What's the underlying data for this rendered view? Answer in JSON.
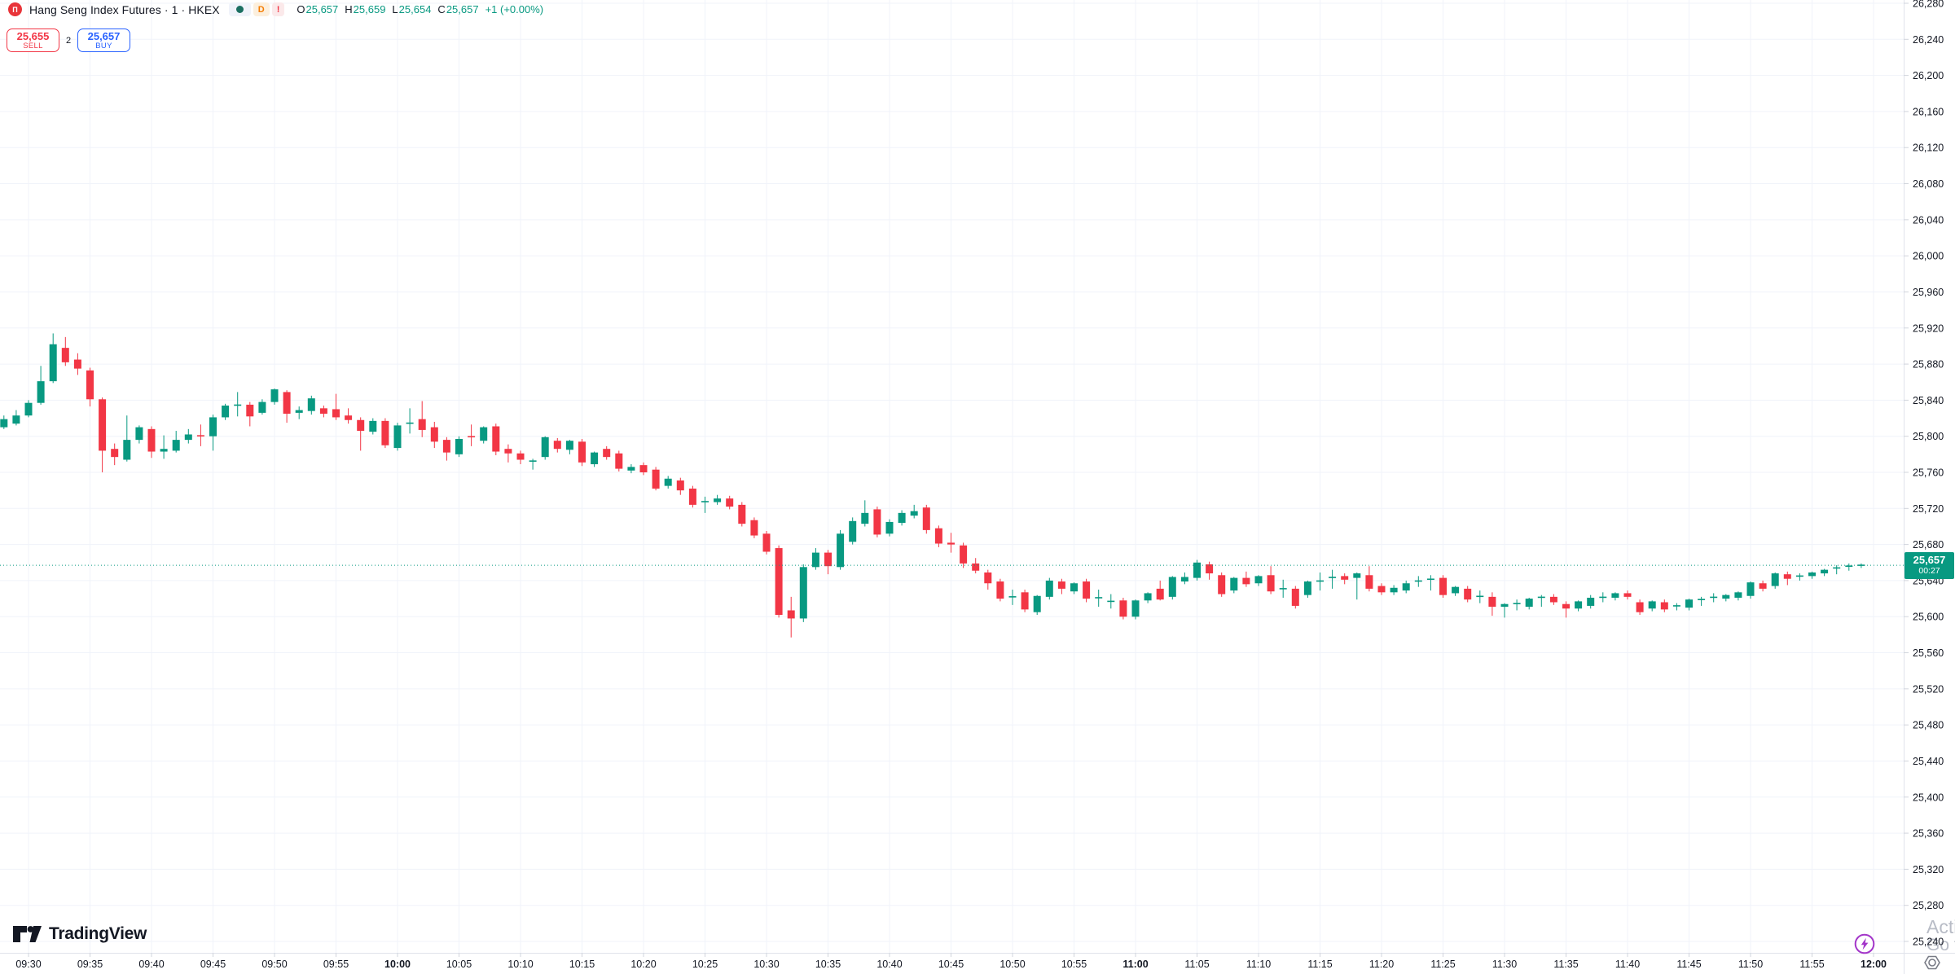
{
  "header": {
    "symbol_icon_glyph": "Π",
    "title": "Hang Seng Index Futures · 1 · HKEX",
    "interval_badge": "D",
    "alert_badge": "!",
    "ohlc": {
      "o_label": "O",
      "o": "25,657",
      "h_label": "H",
      "h": "25,659",
      "l_label": "L",
      "l": "25,654",
      "c_label": "C",
      "c": "25,657",
      "change": "+1 (+0.00%)"
    }
  },
  "trade_panel": {
    "sell_price": "25,655",
    "sell_label": "SELL",
    "spread": "2",
    "buy_price": "25,657",
    "buy_label": "BUY"
  },
  "price_scale": {
    "last_price": "25,657",
    "countdown": "00:27"
  },
  "watermark": {
    "logo_text": "TradingView",
    "activate_fragment": "Activ",
    "goto_fragment": "Go to S"
  },
  "colors": {
    "up": "#089981",
    "down": "#f23645",
    "grid": "#f0f3fa",
    "border": "#e0e3eb",
    "tick": "#d1d4dc",
    "text": "#131722",
    "watermark": "#b8bcc6",
    "buy_blue": "#2962ff",
    "sell_red": "#f23645",
    "accent_purple": "#a336c9",
    "icon_gray": "#787b86"
  },
  "chart_data": {
    "type": "candlestick",
    "title": "Hang Seng Index Futures, 1 minute, HKEX",
    "legend_position": "none",
    "grid": true,
    "last_price": 25657,
    "countdown": "00:27",
    "y_axis": {
      "min": 25240,
      "max": 26280,
      "tick_step": 40
    },
    "x_axis": {
      "start": "09:30",
      "end": "12:00",
      "step_minutes": 5,
      "labels": [
        "09:30",
        "09:35",
        "09:40",
        "09:45",
        "09:50",
        "09:55",
        "10:00",
        "10:05",
        "10:10",
        "10:15",
        "10:20",
        "10:25",
        "10:30",
        "10:35",
        "10:40",
        "10:45",
        "10:50",
        "10:55",
        "11:00",
        "11:05",
        "11:10",
        "11:15",
        "11:20",
        "11:25",
        "11:30",
        "11:35",
        "11:40",
        "11:45",
        "11:50",
        "11:55",
        "12:00"
      ]
    },
    "candles": [
      [
        "09:27",
        25806,
        25819,
        25804,
        25817
      ],
      [
        "09:28",
        25810,
        25823,
        25808,
        25819
      ],
      [
        "09:29",
        25814,
        25829,
        25812,
        25823
      ],
      [
        "09:30",
        25823,
        25840,
        25821,
        25837
      ],
      [
        "09:31",
        25837,
        25878,
        25835,
        25861
      ],
      [
        "09:32",
        25861,
        25914,
        25859,
        25902
      ],
      [
        "09:33",
        25898,
        25910,
        25878,
        25882
      ],
      [
        "09:34",
        25885,
        25892,
        25868,
        25875
      ],
      [
        "09:35",
        25873,
        25876,
        25833,
        25841
      ],
      [
        "09:36",
        25841,
        25843,
        25760,
        25784
      ],
      [
        "09:37",
        25786,
        25792,
        25768,
        25777
      ],
      [
        "09:38",
        25774,
        25823,
        25772,
        25796
      ],
      [
        "09:39",
        25796,
        25812,
        25792,
        25810
      ],
      [
        "09:40",
        25808,
        25811,
        25776,
        25783
      ],
      [
        "09:41",
        25783,
        25801,
        25775,
        25786
      ],
      [
        "09:42",
        25784,
        25806,
        25782,
        25796
      ],
      [
        "09:43",
        25796,
        25808,
        25792,
        25802
      ],
      [
        "09:44",
        25801,
        25813,
        25789,
        25800
      ],
      [
        "09:45",
        25800,
        25824,
        25784,
        25821
      ],
      [
        "09:46",
        25821,
        25836,
        25818,
        25834
      ],
      [
        "09:47",
        25834,
        25849,
        25822,
        25835
      ],
      [
        "09:48",
        25835,
        25838,
        25811,
        25822
      ],
      [
        "09:49",
        25826,
        25841,
        25824,
        25838
      ],
      [
        "09:50",
        25838,
        25853,
        25835,
        25852
      ],
      [
        "09:51",
        25849,
        25851,
        25815,
        25825
      ],
      [
        "09:52",
        25826,
        25833,
        25819,
        25829
      ],
      [
        "09:53",
        25828,
        25845,
        25824,
        25842
      ],
      [
        "09:54",
        25831,
        25834,
        25821,
        25825
      ],
      [
        "09:55",
        25830,
        25847,
        25818,
        25821
      ],
      [
        "09:56",
        25823,
        25831,
        25814,
        25818
      ],
      [
        "09:57",
        25818,
        25821,
        25784,
        25806
      ],
      [
        "09:58",
        25805,
        25820,
        25802,
        25817
      ],
      [
        "09:59",
        25817,
        25820,
        25787,
        25790
      ],
      [
        "10:00",
        25787,
        25815,
        25784,
        25812
      ],
      [
        "10:01",
        25814,
        25831,
        25803,
        25815
      ],
      [
        "10:02",
        25819,
        25839,
        25799,
        25807
      ],
      [
        "10:03",
        25810,
        25816,
        25787,
        25794
      ],
      [
        "10:04",
        25796,
        25799,
        25773,
        25782
      ],
      [
        "10:05",
        25780,
        25800,
        25777,
        25797
      ],
      [
        "10:06",
        25800,
        25813,
        25789,
        25799
      ],
      [
        "10:07",
        25795,
        25811,
        25792,
        25810
      ],
      [
        "10:08",
        25811,
        25814,
        25779,
        25783
      ],
      [
        "10:09",
        25786,
        25791,
        25771,
        25781
      ],
      [
        "10:10",
        25781,
        25784,
        25769,
        25774
      ],
      [
        "10:11",
        25772,
        25775,
        25763,
        25773
      ],
      [
        "10:12",
        25777,
        25800,
        25774,
        25799
      ],
      [
        "10:13",
        25795,
        25798,
        25782,
        25786
      ],
      [
        "10:14",
        25785,
        25796,
        25780,
        25795
      ],
      [
        "10:15",
        25794,
        25797,
        25767,
        25771
      ],
      [
        "10:16",
        25769,
        25783,
        25766,
        25782
      ],
      [
        "10:17",
        25786,
        25789,
        25774,
        25777
      ],
      [
        "10:18",
        25781,
        25784,
        25761,
        25764
      ],
      [
        "10:19",
        25762,
        25769,
        25759,
        25766
      ],
      [
        "10:20",
        25768,
        25771,
        25757,
        25760
      ],
      [
        "10:21",
        25763,
        25766,
        25740,
        25742
      ],
      [
        "10:22",
        25745,
        25756,
        25742,
        25753
      ],
      [
        "10:23",
        25751,
        25754,
        25735,
        25740
      ],
      [
        "10:24",
        25742,
        25745,
        25721,
        25724
      ],
      [
        "10:25",
        25727,
        25733,
        25715,
        25728
      ],
      [
        "10:26",
        25727,
        25735,
        25724,
        25731
      ],
      [
        "10:27",
        25731,
        25734,
        25719,
        25722
      ],
      [
        "10:28",
        25724,
        25727,
        25700,
        25703
      ],
      [
        "10:29",
        25707,
        25710,
        25687,
        25690
      ],
      [
        "10:30",
        25692,
        25695,
        25669,
        25672
      ],
      [
        "10:31",
        25676,
        25679,
        25599,
        25602
      ],
      [
        "10:32",
        25607,
        25622,
        25577,
        25598
      ],
      [
        "10:33",
        25598,
        25658,
        25594,
        25655
      ],
      [
        "10:34",
        25655,
        25676,
        25652,
        25671
      ],
      [
        "10:35",
        25671,
        25674,
        25647,
        25656
      ],
      [
        "10:36",
        25655,
        25696,
        25652,
        25692
      ],
      [
        "10:37",
        25683,
        25710,
        25680,
        25706
      ],
      [
        "10:38",
        25703,
        25729,
        25700,
        25715
      ],
      [
        "10:39",
        25719,
        25722,
        25688,
        25691
      ],
      [
        "10:40",
        25692,
        25708,
        25689,
        25705
      ],
      [
        "10:41",
        25704,
        25718,
        25701,
        25715
      ],
      [
        "10:42",
        25712,
        25724,
        25709,
        25717
      ],
      [
        "10:43",
        25721,
        25724,
        25692,
        25696
      ],
      [
        "10:44",
        25698,
        25701,
        25677,
        25681
      ],
      [
        "10:45",
        25682,
        25693,
        25671,
        25680
      ],
      [
        "10:46",
        25679,
        25682,
        25654,
        25659
      ],
      [
        "10:47",
        25659,
        25665,
        25648,
        25651
      ],
      [
        "10:48",
        25649,
        25652,
        25630,
        25637
      ],
      [
        "10:49",
        25639,
        25642,
        25617,
        25620
      ],
      [
        "10:50",
        25622,
        25630,
        25613,
        25622
      ],
      [
        "10:51",
        25627,
        25630,
        25605,
        25608
      ],
      [
        "10:52",
        25605,
        25624,
        25602,
        25623
      ],
      [
        "10:53",
        25622,
        25643,
        25619,
        25640
      ],
      [
        "10:54",
        25639,
        25642,
        25625,
        25631
      ],
      [
        "10:55",
        25628,
        25638,
        25625,
        25637
      ],
      [
        "10:56",
        25639,
        25642,
        25616,
        25620
      ],
      [
        "10:57",
        25621,
        25630,
        25611,
        25621
      ],
      [
        "10:58",
        25617,
        25625,
        25609,
        25617
      ],
      [
        "10:59",
        25618,
        25621,
        25597,
        25600
      ],
      [
        "11:00",
        25600,
        25619,
        25597,
        25618
      ],
      [
        "11:01",
        25618,
        25627,
        25615,
        25626
      ],
      [
        "11:02",
        25631,
        25640,
        25618,
        25619
      ],
      [
        "11:03",
        25622,
        25645,
        25619,
        25644
      ],
      [
        "11:04",
        25639,
        25649,
        25636,
        25644
      ],
      [
        "11:05",
        25643,
        25663,
        25640,
        25660
      ],
      [
        "11:06",
        25658,
        25661,
        25641,
        25648
      ],
      [
        "11:07",
        25646,
        25649,
        25622,
        25625
      ],
      [
        "11:08",
        25629,
        25644,
        25626,
        25643
      ],
      [
        "11:09",
        25643,
        25650,
        25633,
        25636
      ],
      [
        "11:10",
        25637,
        25646,
        25634,
        25645
      ],
      [
        "11:11",
        25646,
        25656,
        25625,
        25628
      ],
      [
        "11:12",
        25631,
        25641,
        25621,
        25631
      ],
      [
        "11:13",
        25631,
        25634,
        25609,
        25612
      ],
      [
        "11:14",
        25624,
        25640,
        25621,
        25639
      ],
      [
        "11:15",
        25639,
        25649,
        25629,
        25640
      ],
      [
        "11:16",
        25643,
        25652,
        25631,
        25644
      ],
      [
        "11:17",
        25645,
        25648,
        25636,
        25641
      ],
      [
        "11:18",
        25643,
        25649,
        25619,
        25648
      ],
      [
        "11:19",
        25646,
        25656,
        25628,
        25631
      ],
      [
        "11:20",
        25634,
        25637,
        25624,
        25627
      ],
      [
        "11:21",
        25627,
        25635,
        25624,
        25632
      ],
      [
        "11:22",
        25629,
        25640,
        25626,
        25637
      ],
      [
        "11:23",
        25639,
        25645,
        25633,
        25640
      ],
      [
        "11:24",
        25641,
        25646,
        25629,
        25642
      ],
      [
        "11:25",
        25643,
        25646,
        25621,
        25624
      ],
      [
        "11:26",
        25626,
        25634,
        25623,
        25633
      ],
      [
        "11:27",
        25631,
        25634,
        25616,
        25619
      ],
      [
        "11:28",
        25622,
        25629,
        25615,
        25623
      ],
      [
        "11:29",
        25622,
        25627,
        25601,
        25611
      ],
      [
        "11:30",
        25611,
        25615,
        25599,
        25614
      ],
      [
        "11:31",
        25614,
        25619,
        25607,
        25615
      ],
      [
        "11:32",
        25611,
        25621,
        25608,
        25620
      ],
      [
        "11:33",
        25621,
        25624,
        25611,
        25622
      ],
      [
        "11:34",
        25622,
        25625,
        25613,
        25616
      ],
      [
        "11:35",
        25614,
        25617,
        25599,
        25609
      ],
      [
        "11:36",
        25609,
        25618,
        25606,
        25617
      ],
      [
        "11:37",
        25612,
        25624,
        25609,
        25621
      ],
      [
        "11:38",
        25621,
        25627,
        25616,
        25622
      ],
      [
        "11:39",
        25621,
        25627,
        25618,
        25626
      ],
      [
        "11:40",
        25626,
        25629,
        25619,
        25622
      ],
      [
        "11:41",
        25616,
        25619,
        25602,
        25605
      ],
      [
        "11:42",
        25609,
        25618,
        25606,
        25617
      ],
      [
        "11:43",
        25616,
        25619,
        25605,
        25608
      ],
      [
        "11:44",
        25612,
        25615,
        25607,
        25612
      ],
      [
        "11:45",
        25610,
        25620,
        25607,
        25619
      ],
      [
        "11:46",
        25619,
        25622,
        25612,
        25619
      ],
      [
        "11:47",
        25621,
        25626,
        25616,
        25622
      ],
      [
        "11:48",
        25620,
        25625,
        25617,
        25624
      ],
      [
        "11:49",
        25621,
        25628,
        25618,
        25627
      ],
      [
        "11:50",
        25623,
        25639,
        25620,
        25638
      ],
      [
        "11:51",
        25637,
        25640,
        25628,
        25631
      ],
      [
        "11:52",
        25634,
        25649,
        25631,
        25648
      ],
      [
        "11:53",
        25647,
        25650,
        25635,
        25642
      ],
      [
        "11:54",
        25645,
        25648,
        25640,
        25645
      ],
      [
        "11:55",
        25645,
        25650,
        25642,
        25649
      ],
      [
        "11:56",
        25648,
        25653,
        25645,
        25652
      ],
      [
        "11:57",
        25654,
        25657,
        25647,
        25654
      ],
      [
        "11:58",
        25656,
        25659,
        25651,
        25656
      ],
      [
        "11:59",
        25657,
        25659,
        25654,
        25657
      ]
    ]
  }
}
